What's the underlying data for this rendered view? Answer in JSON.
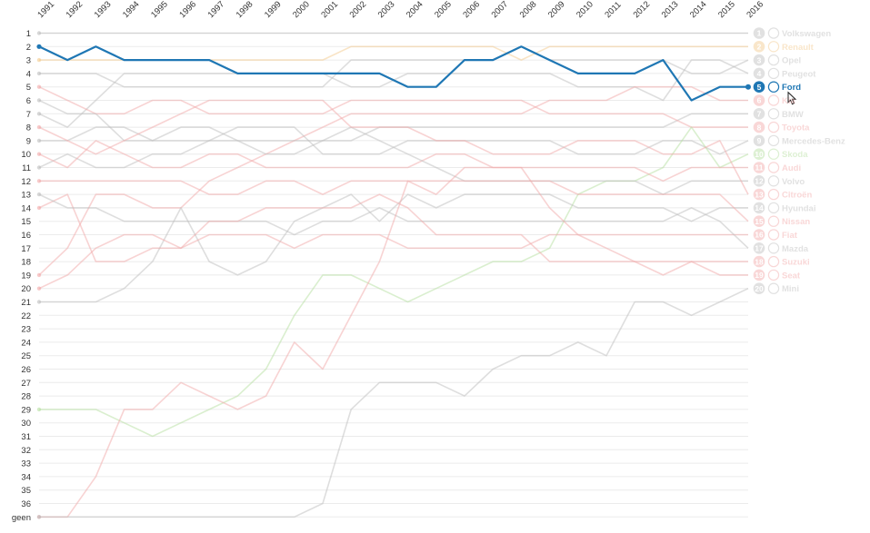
{
  "chart_data": {
    "type": "line",
    "title": "",
    "x": [
      1991,
      1992,
      1993,
      1994,
      1995,
      1996,
      1997,
      1998,
      1999,
      2000,
      2001,
      2002,
      2003,
      2004,
      2005,
      2006,
      2007,
      2008,
      2009,
      2010,
      2011,
      2012,
      2013,
      2014,
      2015,
      2016
    ],
    "y_ticks": [
      "1",
      "2",
      "3",
      "4",
      "5",
      "6",
      "7",
      "8",
      "9",
      "10",
      "11",
      "12",
      "13",
      "14",
      "15",
      "16",
      "17",
      "18",
      "19",
      "20",
      "21",
      "22",
      "23",
      "24",
      "25",
      "26",
      "27",
      "28",
      "29",
      "30",
      "31",
      "32",
      "33",
      "34",
      "35",
      "36",
      "geen"
    ],
    "y_axis": "rank, 1 at top, 'geen' = not ranked",
    "highlighted": "Ford",
    "legend_placement": "right, at 2016 rank",
    "series": [
      {
        "rank": "1",
        "name": "Volkswagen",
        "color": "#bdbdbd",
        "values": [
          1,
          1,
          1,
          1,
          1,
          1,
          1,
          1,
          1,
          1,
          1,
          1,
          1,
          1,
          1,
          1,
          1,
          1,
          1,
          1,
          1,
          1,
          1,
          1,
          1,
          1
        ]
      },
      {
        "rank": "2",
        "name": "Renault",
        "color": "#f3c98b",
        "values": [
          3,
          3,
          3,
          3,
          3,
          3,
          3,
          3,
          3,
          3,
          3,
          2,
          2,
          2,
          2,
          2,
          2,
          3,
          2,
          2,
          2,
          2,
          2,
          2,
          2,
          2
        ]
      },
      {
        "rank": "3",
        "name": "Opel",
        "color": "#bdbdbd",
        "values": [
          4,
          4,
          4,
          5,
          5,
          5,
          5,
          5,
          5,
          5,
          5,
          3,
          3,
          3,
          3,
          3,
          3,
          2,
          3,
          3,
          3,
          3,
          3,
          4,
          4,
          3
        ]
      },
      {
        "rank": "4",
        "name": "Peugeot",
        "color": "#bdbdbd",
        "values": [
          7,
          8,
          6,
          4,
          4,
          4,
          4,
          4,
          4,
          4,
          4,
          5,
          5,
          4,
          4,
          4,
          4,
          4,
          4,
          5,
          5,
          5,
          6,
          3,
          3,
          4
        ]
      },
      {
        "rank": "5",
        "name": "Ford",
        "color": "#1f77b4",
        "values": [
          2,
          3,
          2,
          3,
          3,
          3,
          3,
          4,
          4,
          4,
          4,
          4,
          4,
          5,
          5,
          3,
          3,
          2,
          3,
          4,
          4,
          4,
          3,
          6,
          5,
          5
        ]
      },
      {
        "rank": "6",
        "name": "Kia",
        "color": "#f2a7a7",
        "values": [
          19,
          17,
          13,
          13,
          14,
          14,
          12,
          11,
          10,
          9,
          8,
          7,
          7,
          7,
          7,
          7,
          7,
          7,
          6,
          6,
          6,
          5,
          5,
          5,
          6,
          6
        ]
      },
      {
        "rank": "7",
        "name": "BMW",
        "color": "#bdbdbd",
        "values": [
          9,
          9,
          8,
          8,
          9,
          8,
          8,
          9,
          9,
          9,
          9,
          9,
          8,
          8,
          8,
          8,
          8,
          8,
          8,
          8,
          8,
          8,
          8,
          7,
          7,
          7
        ]
      },
      {
        "rank": "8",
        "name": "Toyota",
        "color": "#f2a7a7",
        "values": [
          5,
          6,
          7,
          7,
          6,
          6,
          7,
          7,
          7,
          7,
          7,
          6,
          6,
          6,
          6,
          6,
          6,
          6,
          7,
          7,
          7,
          7,
          7,
          8,
          8,
          8
        ]
      },
      {
        "rank": "9",
        "name": "Mercedes-Benz",
        "color": "#bdbdbd",
        "values": [
          11,
          10,
          11,
          11,
          10,
          10,
          9,
          8,
          8,
          8,
          10,
          10,
          10,
          9,
          9,
          9,
          9,
          9,
          9,
          10,
          10,
          10,
          9,
          9,
          10,
          9
        ]
      },
      {
        "rank": "10",
        "name": "Skoda",
        "color": "#b6dfa0",
        "values": [
          29,
          29,
          29,
          30,
          31,
          30,
          29,
          28,
          26,
          22,
          19,
          19,
          20,
          21,
          20,
          19,
          18,
          18,
          17,
          13,
          12,
          12,
          11,
          8,
          11,
          10
        ]
      },
      {
        "rank": "11",
        "name": "Audi",
        "color": "#f2a7a7",
        "values": [
          10,
          11,
          9,
          10,
          11,
          11,
          10,
          10,
          11,
          11,
          11,
          11,
          11,
          11,
          10,
          10,
          11,
          11,
          11,
          11,
          11,
          11,
          12,
          11,
          11,
          11
        ]
      },
      {
        "rank": "12",
        "name": "Volvo",
        "color": "#bdbdbd",
        "values": [
          6,
          7,
          7,
          9,
          9,
          9,
          9,
          9,
          10,
          10,
          9,
          8,
          9,
          10,
          11,
          12,
          12,
          12,
          12,
          12,
          12,
          12,
          13,
          12,
          12,
          12
        ]
      },
      {
        "rank": "13",
        "name": "Citroën",
        "color": "#f2a7a7",
        "values": [
          8,
          9,
          10,
          9,
          8,
          7,
          6,
          6,
          6,
          6,
          6,
          8,
          8,
          8,
          9,
          9,
          10,
          10,
          10,
          9,
          9,
          9,
          10,
          10,
          9,
          13
        ]
      },
      {
        "rank": "14",
        "name": "Hyundai",
        "color": "#bdbdbd",
        "values": [
          21,
          21,
          21,
          20,
          18,
          14,
          18,
          19,
          18,
          15,
          14,
          13,
          15,
          13,
          14,
          13,
          13,
          13,
          13,
          14,
          14,
          14,
          14,
          15,
          14,
          14
        ]
      },
      {
        "rank": "15",
        "name": "Nissan",
        "color": "#f2a7a7",
        "values": [
          12,
          12,
          12,
          12,
          12,
          12,
          13,
          13,
          12,
          12,
          13,
          12,
          12,
          12,
          12,
          12,
          12,
          12,
          12,
          13,
          13,
          13,
          13,
          13,
          13,
          15
        ]
      },
      {
        "rank": "16",
        "name": "Fiat",
        "color": "#f2a7a7",
        "values": [
          14,
          13,
          18,
          18,
          17,
          17,
          16,
          16,
          16,
          17,
          16,
          16,
          16,
          17,
          17,
          17,
          17,
          17,
          16,
          16,
          16,
          16,
          16,
          16,
          16,
          16
        ]
      },
      {
        "rank": "17",
        "name": "Mazda",
        "color": "#bdbdbd",
        "values": [
          13,
          14,
          14,
          15,
          15,
          15,
          15,
          15,
          15,
          16,
          15,
          15,
          14,
          15,
          15,
          15,
          15,
          15,
          15,
          15,
          15,
          15,
          15,
          14,
          15,
          17
        ]
      },
      {
        "rank": "18",
        "name": "Suzuki",
        "color": "#f2a7a7",
        "values": [
          20,
          19,
          17,
          16,
          16,
          17,
          15,
          15,
          14,
          14,
          14,
          14,
          13,
          14,
          16,
          16,
          16,
          16,
          18,
          18,
          18,
          18,
          18,
          18,
          18,
          18
        ]
      },
      {
        "rank": "19",
        "name": "Seat",
        "color": "#f2a7a7",
        "values": [
          37,
          37,
          34,
          29,
          29,
          27,
          28,
          29,
          28,
          24,
          26,
          22,
          18,
          12,
          13,
          11,
          11,
          11,
          14,
          16,
          17,
          18,
          19,
          18,
          19,
          19
        ]
      },
      {
        "rank": "20",
        "name": "Mini",
        "color": "#bdbdbd",
        "values": [
          37,
          37,
          37,
          37,
          37,
          37,
          37,
          37,
          37,
          37,
          36,
          29,
          27,
          27,
          27,
          28,
          26,
          25,
          25,
          24,
          25,
          21,
          21,
          22,
          21,
          20
        ]
      }
    ]
  },
  "icons": {
    "highlight_logo": "ford-oval-icon",
    "cursor": "hand-pointer-icon"
  }
}
